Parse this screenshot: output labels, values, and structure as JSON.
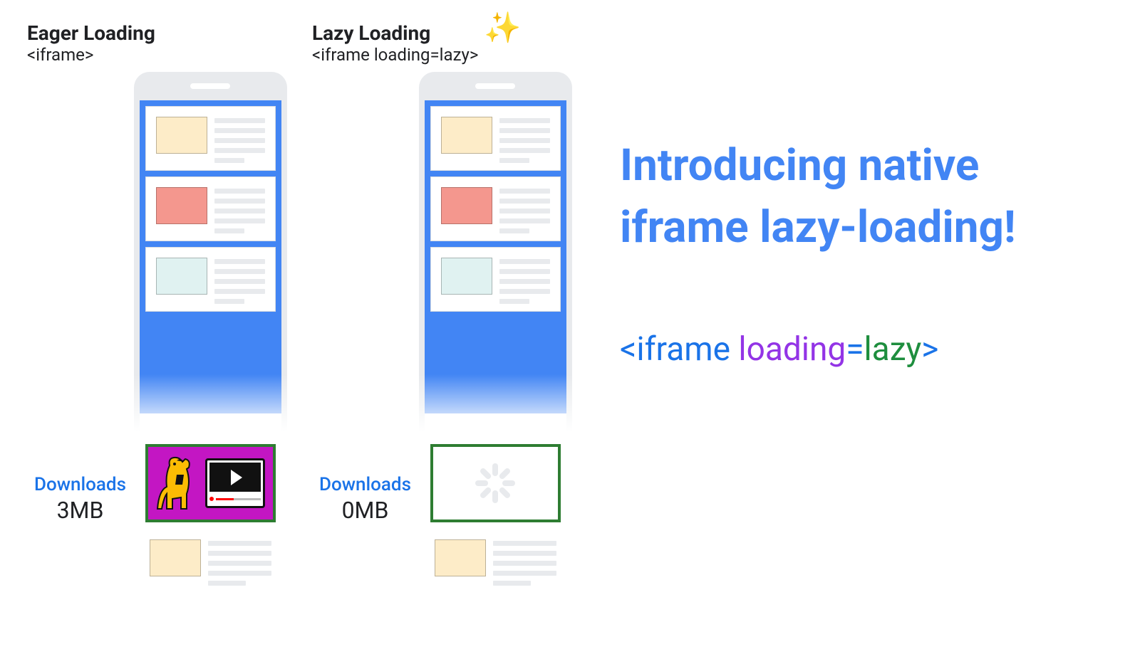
{
  "columns": {
    "eager": {
      "title": "Eager Loading",
      "subtitle": "<iframe>",
      "download_label": "Downloads",
      "download_size": "3MB",
      "iframe_border_color": "#2e7d32",
      "iframe_bg_color": "#c316c3"
    },
    "lazy": {
      "title": "Lazy Loading",
      "subtitle": "<iframe loading=lazy>",
      "download_label": "Downloads",
      "download_size": "0MB",
      "iframe_border_color": "#2e7d32",
      "iframe_bg_color": "#ffffff"
    }
  },
  "sparkles": "✨",
  "download_label_color": "#1a73e8",
  "phone": {
    "thumbs": [
      "#fdecc8",
      "#f4978e",
      "#e0f2f1",
      "#fdecc8"
    ],
    "line_color": "#e8eaed",
    "blue": "#4285f4",
    "frame": "#e8eaed"
  },
  "headline": {
    "text": "Introducing native iframe lazy-loading!",
    "color": "#4285f4"
  },
  "code": {
    "parts": [
      {
        "text": "<iframe ",
        "color": "#1a73e8"
      },
      {
        "text": "loading",
        "color": "#9334e6"
      },
      {
        "text": "=",
        "color": "#1a73e8"
      },
      {
        "text": "lazy",
        "color": "#1e8e3e"
      },
      {
        "text": ">",
        "color": "#1a73e8"
      }
    ]
  },
  "spinner": {
    "segments": 8,
    "color": "#e8eaed"
  },
  "dog_color": "#fbbc04",
  "video": {
    "play_color": "#ffffff",
    "progress_color": "#ff0000"
  }
}
